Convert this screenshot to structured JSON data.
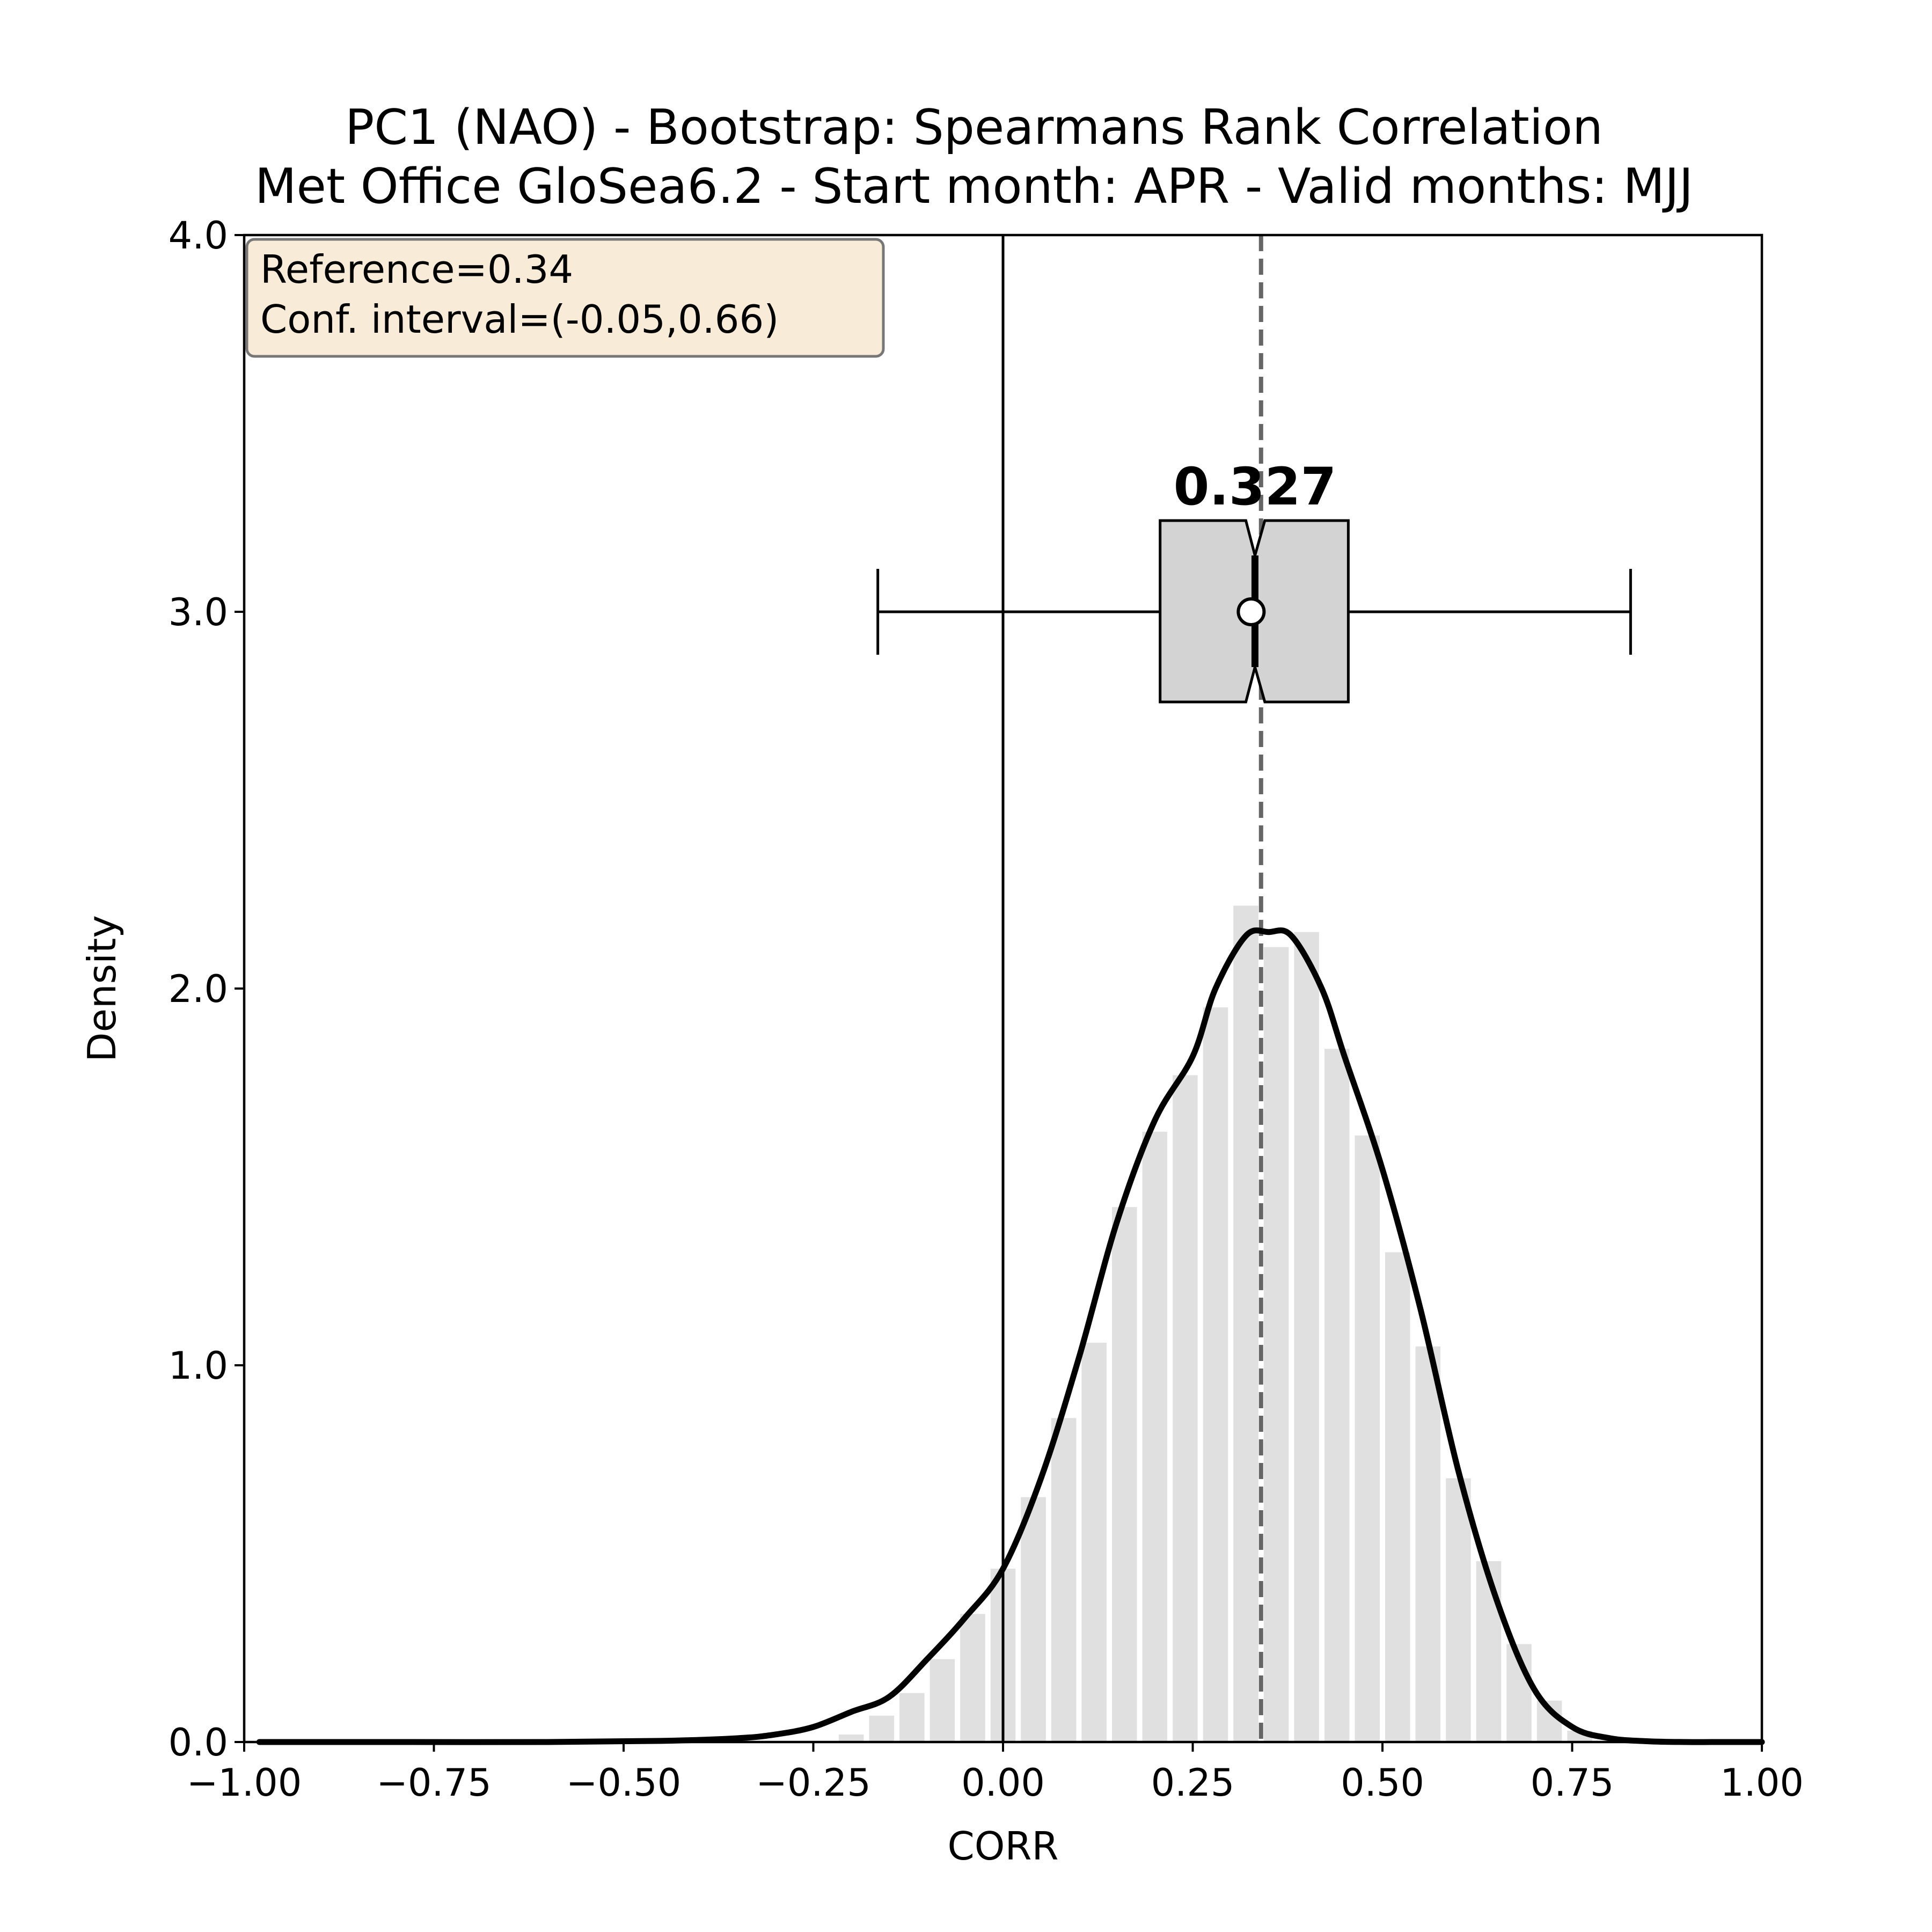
{
  "chart_data": {
    "type": "histogram",
    "title": "PC1 (NAO) - Bootstrap: Spearmans Rank Correlation",
    "subtitle": "Met Office GloSea6.2 - Start month: APR - Valid months: MJJ",
    "xlabel": "CORR",
    "ylabel": "Density",
    "xlim": [
      -1.0,
      1.0
    ],
    "ylim": [
      0.0,
      4.0
    ],
    "xticks": [
      "−1.00",
      "−0.75",
      "−0.50",
      "−0.25",
      "0.00",
      "0.25",
      "0.50",
      "0.75",
      "1.00"
    ],
    "yticks": [
      "0.0",
      "1.0",
      "2.0",
      "3.0",
      "4.0"
    ],
    "grid": false,
    "stats_box": {
      "reference": "Reference=0.34",
      "conf_interval": "Conf. interval=(-0.05,0.66)"
    },
    "reference_value": 0.34,
    "zero_line": 0.0,
    "histogram": {
      "bin_width": 0.04,
      "bins": [
        {
          "x0": -0.22,
          "x1": -0.18,
          "density": 0.02
        },
        {
          "x0": -0.18,
          "x1": -0.14,
          "density": 0.07
        },
        {
          "x0": -0.14,
          "x1": -0.1,
          "density": 0.13
        },
        {
          "x0": -0.1,
          "x1": -0.06,
          "density": 0.22
        },
        {
          "x0": -0.06,
          "x1": -0.02,
          "density": 0.34
        },
        {
          "x0": -0.02,
          "x1": 0.02,
          "density": 0.46
        },
        {
          "x0": 0.02,
          "x1": 0.06,
          "density": 0.65
        },
        {
          "x0": 0.06,
          "x1": 0.1,
          "density": 0.86
        },
        {
          "x0": 0.1,
          "x1": 0.14,
          "density": 1.06
        },
        {
          "x0": 0.14,
          "x1": 0.18,
          "density": 1.42
        },
        {
          "x0": 0.18,
          "x1": 0.22,
          "density": 1.62
        },
        {
          "x0": 0.22,
          "x1": 0.26,
          "density": 1.77
        },
        {
          "x0": 0.26,
          "x1": 0.3,
          "density": 1.95
        },
        {
          "x0": 0.3,
          "x1": 0.34,
          "density": 2.22
        },
        {
          "x0": 0.34,
          "x1": 0.38,
          "density": 2.11
        },
        {
          "x0": 0.38,
          "x1": 0.42,
          "density": 2.15
        },
        {
          "x0": 0.42,
          "x1": 0.46,
          "density": 1.84
        },
        {
          "x0": 0.46,
          "x1": 0.5,
          "density": 1.61
        },
        {
          "x0": 0.5,
          "x1": 0.54,
          "density": 1.3
        },
        {
          "x0": 0.54,
          "x1": 0.58,
          "density": 1.05
        },
        {
          "x0": 0.58,
          "x1": 0.62,
          "density": 0.7
        },
        {
          "x0": 0.62,
          "x1": 0.66,
          "density": 0.48
        },
        {
          "x0": 0.66,
          "x1": 0.7,
          "density": 0.26
        },
        {
          "x0": 0.7,
          "x1": 0.74,
          "density": 0.11
        },
        {
          "x0": 0.74,
          "x1": 0.78,
          "density": 0.03
        }
      ]
    },
    "kde": {
      "x": [
        -0.98,
        -0.8,
        -0.6,
        -0.45,
        -0.35,
        -0.3,
        -0.25,
        -0.2,
        -0.15,
        -0.1,
        -0.05,
        0.0,
        0.05,
        0.1,
        0.15,
        0.2,
        0.25,
        0.28,
        0.32,
        0.35,
        0.38,
        0.42,
        0.45,
        0.5,
        0.55,
        0.6,
        0.65,
        0.7,
        0.75,
        0.8,
        0.85,
        0.9,
        0.95,
        1.0
      ],
      "y": [
        0.0,
        0.0,
        0.0,
        0.003,
        0.01,
        0.02,
        0.04,
        0.08,
        0.12,
        0.22,
        0.33,
        0.46,
        0.7,
        1.02,
        1.38,
        1.65,
        1.82,
        2.0,
        2.14,
        2.15,
        2.14,
        2.0,
        1.82,
        1.52,
        1.15,
        0.72,
        0.38,
        0.14,
        0.04,
        0.01,
        0.002,
        0.0,
        0.0,
        0.0
      ]
    },
    "boxplot": {
      "y_position": 3.0,
      "whisker_low": -0.165,
      "q1": 0.207,
      "median": 0.332,
      "q3": 0.455,
      "whisker_high": 0.827,
      "mean": 0.327,
      "notch_low": 0.32,
      "notch_high": 0.345,
      "mean_label": "0.327"
    },
    "colors": {
      "bars": "#e0e0e0",
      "kde": "#000000",
      "box_fill": "#d3d3d3",
      "reference_line": "#666666",
      "stats_box_fill": "#f8ecd8",
      "stats_box_edge": "#777777"
    }
  }
}
